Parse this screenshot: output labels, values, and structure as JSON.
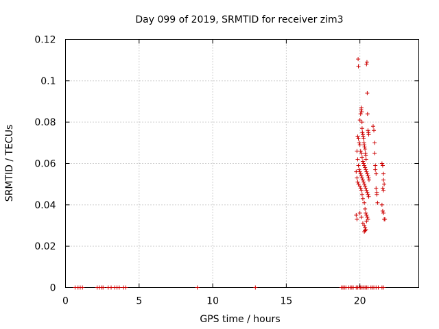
{
  "chart_data": {
    "type": "scatter",
    "title": "Day 099 of 2019, SRMTID for receiver zim3",
    "xlabel": "GPS time / hours",
    "ylabel": "SRMTID / TECUs",
    "xlim": [
      0,
      24
    ],
    "ylim": [
      0,
      0.12
    ],
    "x_ticks": [
      0,
      5,
      10,
      15,
      20
    ],
    "x_tick_labels": [
      "0",
      "5",
      "10",
      "15",
      "20"
    ],
    "y_ticks": [
      0,
      0.02,
      0.04,
      0.06,
      0.08,
      0.1,
      0.12
    ],
    "y_tick_labels": [
      "0",
      "0.02",
      "0.04",
      "0.06",
      "0.08",
      "0.1",
      "0.12"
    ],
    "grid": true,
    "marker": "plus",
    "marker_color": "#cc0000",
    "series": [
      {
        "name": "SRMTID",
        "x": [
          0.65,
          0.85,
          1.0,
          1.15,
          2.15,
          2.3,
          2.45,
          2.55,
          2.9,
          3.1,
          3.35,
          3.5,
          3.65,
          3.95,
          4.1,
          8.95,
          12.9,
          18.75,
          18.85,
          18.95,
          19.05,
          19.25,
          19.35,
          19.45,
          19.55,
          19.75,
          19.85,
          19.95,
          20.05,
          20.15,
          20.25,
          20.35,
          20.45,
          20.55,
          20.75,
          20.85,
          20.95,
          21.1,
          21.25,
          21.5,
          21.6,
          19.88,
          19.9,
          20.0,
          20.05,
          20.08,
          20.1,
          20.12,
          20.14,
          20.15,
          20.17,
          20.2,
          20.22,
          20.25,
          20.28,
          20.3,
          20.32,
          20.35,
          20.38,
          20.4,
          20.42,
          20.45,
          20.48,
          20.5,
          20.52,
          20.55,
          20.58,
          20.6,
          19.85,
          19.9,
          19.95,
          20.0,
          20.05,
          20.1,
          20.15,
          20.2,
          20.25,
          20.3,
          20.35,
          20.4,
          20.45,
          20.5,
          20.55,
          20.6,
          20.62,
          19.8,
          19.85,
          19.9,
          19.95,
          20.0,
          20.05,
          20.1,
          20.15,
          20.2,
          20.25,
          20.3,
          20.35,
          20.4,
          20.45,
          20.5,
          20.55,
          20.6,
          19.75,
          19.8,
          19.85,
          19.9,
          20.0,
          20.05,
          20.1,
          20.15,
          20.2,
          20.3,
          20.35,
          20.4,
          20.45,
          20.5,
          20.55,
          19.75,
          19.8,
          20.0,
          20.1,
          20.2,
          20.3,
          20.35,
          20.4,
          20.45,
          20.3,
          20.35,
          20.4,
          20.9,
          20.95,
          21.0,
          21.0,
          21.05,
          21.05,
          21.1,
          21.1,
          21.15,
          21.15,
          21.2,
          21.5,
          21.55,
          21.6,
          21.6,
          21.65,
          21.55,
          21.6,
          21.5,
          21.55,
          21.6,
          21.65,
          21.7
        ],
        "y": [
          0,
          0,
          0,
          0,
          0,
          0,
          0,
          0,
          0,
          0,
          0,
          0,
          0,
          0,
          0,
          0,
          0,
          0,
          0,
          0,
          0,
          0,
          0,
          0,
          0,
          0,
          0,
          0,
          0,
          0,
          0,
          0,
          0,
          0,
          0,
          0,
          0,
          0,
          0,
          0,
          0,
          0.1105,
          0.107,
          0.081,
          0.084,
          0.086,
          0.087,
          0.085,
          0.08,
          0.077,
          0.075,
          0.074,
          0.073,
          0.072,
          0.07,
          0.069,
          0.068,
          0.067,
          0.065,
          0.064,
          0.062,
          0.108,
          0.109,
          0.094,
          0.084,
          0.076,
          0.075,
          0.074,
          0.073,
          0.072,
          0.07,
          0.069,
          0.066,
          0.065,
          0.063,
          0.061,
          0.06,
          0.059,
          0.058,
          0.057,
          0.056,
          0.055,
          0.054,
          0.053,
          0.052,
          0.066,
          0.062,
          0.059,
          0.057,
          0.056,
          0.055,
          0.054,
          0.053,
          0.052,
          0.051,
          0.05,
          0.049,
          0.048,
          0.047,
          0.046,
          0.045,
          0.044,
          0.056,
          0.053,
          0.051,
          0.05,
          0.049,
          0.048,
          0.047,
          0.045,
          0.043,
          0.041,
          0.038,
          0.036,
          0.035,
          0.034,
          0.033,
          0.035,
          0.033,
          0.036,
          0.034,
          0.031,
          0.03,
          0.029,
          0.028,
          0.032,
          0.027,
          0.0275,
          0.028,
          0.078,
          0.076,
          0.07,
          0.065,
          0.059,
          0.057,
          0.055,
          0.048,
          0.046,
          0.045,
          0.041,
          0.06,
          0.059,
          0.055,
          0.052,
          0.05,
          0.048,
          0.047,
          0.04,
          0.037,
          0.036,
          0.033,
          0.033
        ]
      }
    ]
  }
}
